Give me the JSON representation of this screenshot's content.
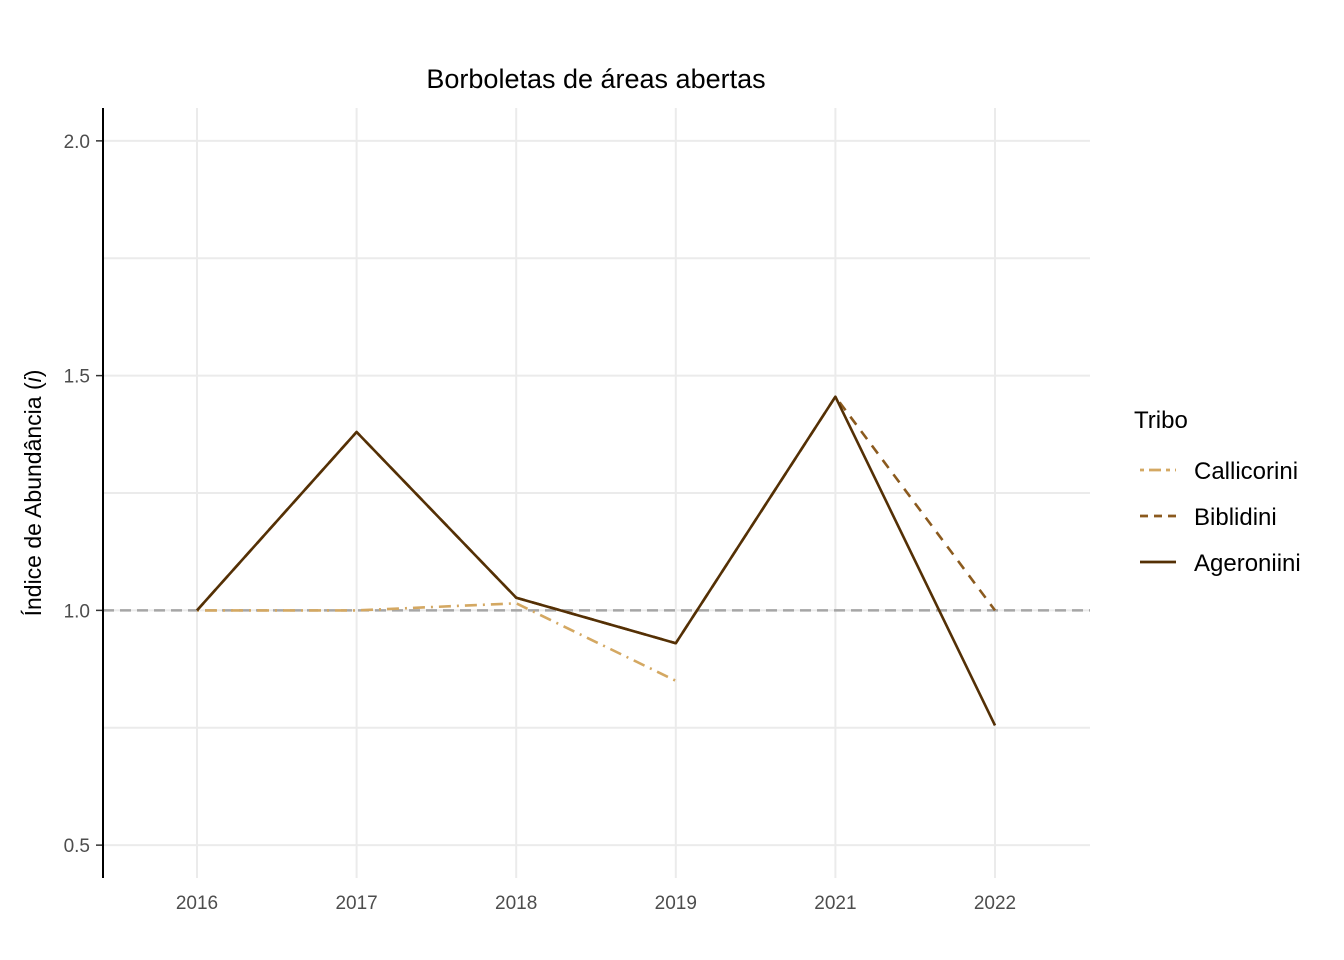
{
  "chart_data": {
    "type": "line",
    "title": "Borboletas de áreas abertas",
    "ylabel_main": "Índice de Abundância (",
    "ylabel_italic": "i",
    "ylabel_end": ")",
    "xlabel": "",
    "categories": [
      "2016",
      "2017",
      "2018",
      "2019",
      "2021",
      "2022"
    ],
    "ylim": [
      0.43,
      2.07
    ],
    "yticks": [
      "0.5",
      "1.0",
      "1.5",
      "2.0"
    ],
    "reference_line": 1.0,
    "legend_title": "Tribo",
    "legend_position": "right",
    "grid": true,
    "series": [
      {
        "name": "Callicorini",
        "color": "#d4a862",
        "dash": "dashdot",
        "values": [
          1.0,
          1.0,
          1.015,
          0.85,
          null,
          null
        ]
      },
      {
        "name": "Biblidini",
        "color": "#8b5a1e",
        "dash": "dashed",
        "values": [
          1.0,
          1.38,
          1.027,
          0.93,
          1.455,
          1.0
        ]
      },
      {
        "name": "Ageroniini",
        "color": "#543005",
        "dash": "solid",
        "values": [
          1.0,
          1.38,
          1.027,
          0.93,
          1.455,
          0.755
        ]
      }
    ]
  }
}
